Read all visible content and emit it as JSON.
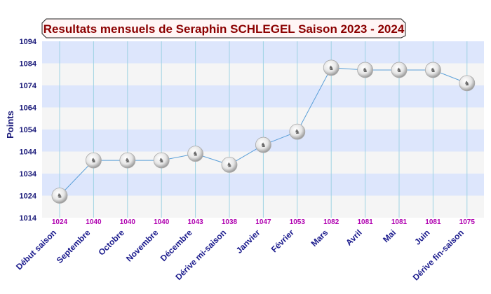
{
  "chart_data": {
    "type": "line",
    "title": "Resultats mensuels de Seraphin SCHLEGEL Saison 2023 - 2024",
    "ylabel": "Points",
    "xlabel": "",
    "ylim": [
      1014,
      1094
    ],
    "yticks": [
      1014,
      1024,
      1034,
      1044,
      1054,
      1064,
      1074,
      1084,
      1094
    ],
    "categories": [
      "Début saison",
      "Septembre",
      "Octobre",
      "Novembre",
      "Décembre",
      "Dérive mi-saison",
      "Janvier",
      "Février",
      "Mars",
      "Avril",
      "Mai",
      "Juin",
      "Dérive fin-saison"
    ],
    "series": [
      {
        "values": [
          1024,
          1040,
          1040,
          1040,
          1043,
          1038,
          1047,
          1053,
          1082,
          1081,
          1081,
          1081,
          1075
        ]
      }
    ],
    "grid": true,
    "band_colors": [
      "#dde6fc",
      "#f5f5f5"
    ],
    "line_color": "#5a9fd8",
    "title_color": "#8b0000",
    "label_color": "#b000b0",
    "marker_icon": "chess-knight-icon"
  }
}
